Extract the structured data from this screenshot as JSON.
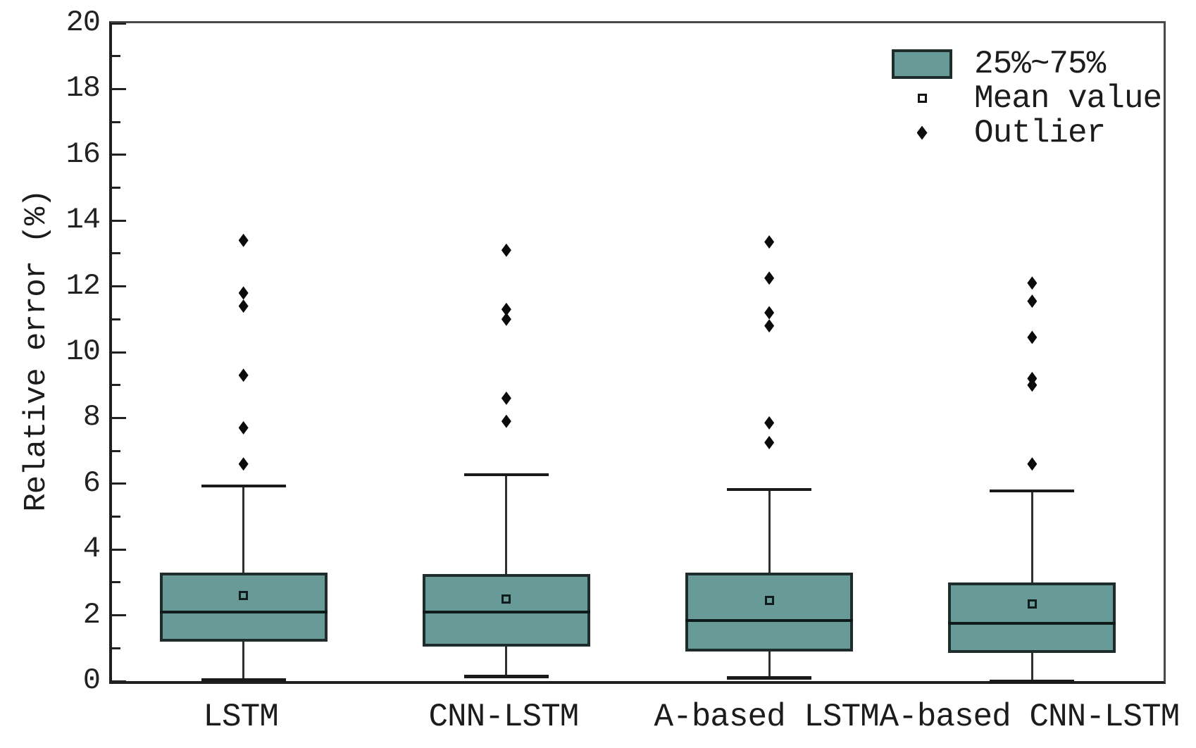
{
  "chart_data": {
    "type": "box",
    "title": "",
    "xlabel": "",
    "ylabel": "Relative error (%)",
    "ylim": [
      0,
      20
    ],
    "y_major_step": 2,
    "y_minor_step": 1,
    "grid": "off",
    "categories": [
      "LSTM",
      "CNN-LSTM",
      "A-based LSTM",
      "A-based CNN-LSTM"
    ],
    "series": [
      {
        "name": "LSTM",
        "q1": 1.2,
        "median": 2.1,
        "q3": 3.3,
        "mean": 2.6,
        "whisker_low": 0.05,
        "whisker_high": 5.95,
        "outliers": [
          6.6,
          7.7,
          9.3,
          11.4,
          11.8,
          13.4
        ]
      },
      {
        "name": "CNN-LSTM",
        "q1": 1.05,
        "median": 2.1,
        "q3": 3.25,
        "mean": 2.5,
        "whisker_low": 0.15,
        "whisker_high": 6.3,
        "outliers": [
          7.9,
          8.6,
          11.0,
          11.3,
          13.1
        ]
      },
      {
        "name": "A-based LSTM",
        "q1": 0.9,
        "median": 1.85,
        "q3": 3.3,
        "mean": 2.45,
        "whisker_low": 0.1,
        "whisker_high": 5.85,
        "outliers": [
          7.25,
          7.85,
          10.8,
          11.2,
          12.25,
          13.35
        ]
      },
      {
        "name": "A-based CNN-LSTM",
        "q1": 0.85,
        "median": 1.75,
        "q3": 3.0,
        "mean": 2.35,
        "whisker_low": 0.0,
        "whisker_high": 5.8,
        "outliers": [
          6.6,
          9.0,
          9.2,
          10.45,
          11.55,
          12.1
        ]
      }
    ],
    "legend": {
      "position": "top-right",
      "items": [
        {
          "label": "25%~75%",
          "marker": "box"
        },
        {
          "label": "Mean value",
          "marker": "open-square"
        },
        {
          "label": "Outlier",
          "marker": "diamond"
        }
      ]
    },
    "colors": {
      "box_fill": "#689a98",
      "box_border": "#1e2d2c",
      "axis": "#1f1f1f",
      "text": "#1c1c1c"
    }
  }
}
